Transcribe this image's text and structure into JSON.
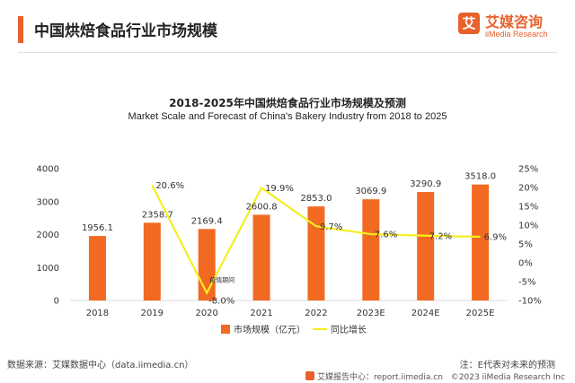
{
  "header": {
    "title": "中国烘焙食品行业市场规模",
    "logo_mark": "艾",
    "logo_cn": "艾媒咨询",
    "logo_en": "iiMedia Research"
  },
  "colors": {
    "bar": "#f26a21",
    "line": "#f5ee1f",
    "accent": "#e8602a"
  },
  "chart_data": {
    "type": "bar",
    "title": "2018-2025年中国烘焙食品行业市场规模及预测",
    "subtitle": "Market Scale and Forecast of China's Bakery Industry from 2018 to 2025",
    "categories": [
      "2018",
      "2019",
      "2020",
      "2021",
      "2022",
      "2023E",
      "2024E",
      "2025E"
    ],
    "series": [
      {
        "name": "市场规模（亿元）",
        "type": "bar",
        "axis": "left",
        "values": [
          1956.1,
          2358.7,
          2169.4,
          2600.8,
          2853.0,
          3069.9,
          3290.9,
          3518.0
        ],
        "labels": [
          "1956.1",
          "2358.7",
          "2169.4",
          "2600.8",
          "2853.0",
          "3069.9",
          "3290.9",
          "3518.0"
        ]
      },
      {
        "name": "同比增长",
        "type": "line",
        "axis": "right",
        "values": [
          null,
          20.6,
          -8.0,
          19.9,
          9.7,
          7.6,
          7.2,
          6.9
        ],
        "labels": [
          "",
          "20.6%",
          "-8.0%",
          "19.9%",
          "9.7%",
          "7.6%",
          "7.2%",
          "6.9%"
        ]
      }
    ],
    "left_axis": {
      "ylim": [
        0,
        4000
      ],
      "ticks": [
        "0",
        "1000",
        "2000",
        "3000",
        "4000"
      ]
    },
    "right_axis": {
      "ylim": [
        -10,
        25
      ],
      "ticks": [
        "-10%",
        "-5%",
        "0%",
        "5%",
        "10%",
        "15%",
        "20%",
        "25%"
      ]
    },
    "annotation": {
      "text": "疫情期间",
      "category": "2020"
    },
    "legend": "bottom-center",
    "grid": false
  },
  "footer": {
    "source": "数据来源：艾媒数据中心（data.iimedia.cn）",
    "note": "注：E代表对未来的预测",
    "report": "艾媒报告中心：report.iimedia.cn",
    "copyright": "©2023 iiMedia Research Inc"
  }
}
